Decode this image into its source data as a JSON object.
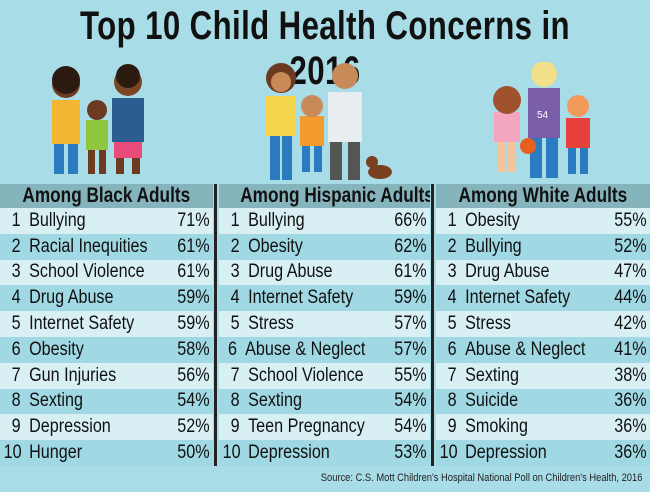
{
  "title": "Top 10 Child Health Concerns in 2016",
  "source": "Source: C.S. Mott Children's Hospital National Poll on Children's Health, 2016",
  "colors": {
    "background": "#a8dde8",
    "header": "#86b4bc",
    "row_dark": "#a0d8e4",
    "row_light": "#d8f0f4"
  },
  "chart_data": [
    {
      "type": "table",
      "title": "Among Black Adults",
      "rows": [
        {
          "rank": "1",
          "label": "Bullying",
          "value": "71%"
        },
        {
          "rank": "2",
          "label": "Racial Inequities",
          "value": "61%"
        },
        {
          "rank": "3",
          "label": "School Violence",
          "value": "61%"
        },
        {
          "rank": "4",
          "label": "Drug Abuse",
          "value": "59%"
        },
        {
          "rank": "5",
          "label": "Internet Safety",
          "value": "59%"
        },
        {
          "rank": "6",
          "label": "Obesity",
          "value": "58%"
        },
        {
          "rank": "7",
          "label": "Gun Injuries",
          "value": "56%"
        },
        {
          "rank": "8",
          "label": "Sexting",
          "value": "54%"
        },
        {
          "rank": "9",
          "label": "Depression",
          "value": "52%"
        },
        {
          "rank": "10",
          "label": "Hunger",
          "value": "50%"
        }
      ]
    },
    {
      "type": "table",
      "title": "Among Hispanic Adults",
      "rows": [
        {
          "rank": "1",
          "label": "Bullying",
          "value": "66%"
        },
        {
          "rank": "2",
          "label": "Obesity",
          "value": "62%"
        },
        {
          "rank": "3",
          "label": "Drug Abuse",
          "value": "61%"
        },
        {
          "rank": "4",
          "label": "Internet Safety",
          "value": "59%"
        },
        {
          "rank": "5",
          "label": "Stress",
          "value": "57%"
        },
        {
          "rank": "6",
          "label": "Abuse & Neglect",
          "value": "57%"
        },
        {
          "rank": "7",
          "label": "School Violence",
          "value": "55%"
        },
        {
          "rank": "8",
          "label": "Sexting",
          "value": "54%"
        },
        {
          "rank": "9",
          "label": "Teen Pregnancy",
          "value": "54%"
        },
        {
          "rank": "10",
          "label": "Depression",
          "value": "53%"
        }
      ]
    },
    {
      "type": "table",
      "title": "Among White Adults",
      "rows": [
        {
          "rank": "1",
          "label": "Obesity",
          "value": "55%"
        },
        {
          "rank": "2",
          "label": "Bullying",
          "value": "52%"
        },
        {
          "rank": "3",
          "label": "Drug Abuse",
          "value": "47%"
        },
        {
          "rank": "4",
          "label": "Internet Safety",
          "value": "44%"
        },
        {
          "rank": "5",
          "label": "Stress",
          "value": "42%"
        },
        {
          "rank": "6",
          "label": "Abuse & Neglect",
          "value": "41%"
        },
        {
          "rank": "7",
          "label": "Sexting",
          "value": "38%"
        },
        {
          "rank": "8",
          "label": "Suicide",
          "value": "36%"
        },
        {
          "rank": "9",
          "label": "Smoking",
          "value": "36%"
        },
        {
          "rank": "10",
          "label": "Depression",
          "value": "36%"
        }
      ]
    }
  ],
  "illustrations": {
    "shirt_number": "54"
  }
}
